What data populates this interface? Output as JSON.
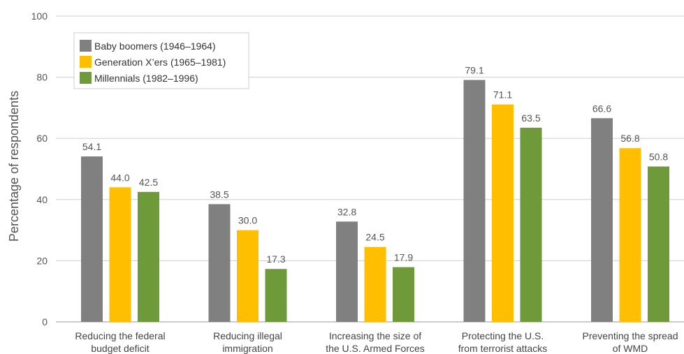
{
  "chart_data": {
    "type": "bar",
    "ylabel": "Percentage of respondents",
    "xlabel": "",
    "ylim": [
      0,
      100
    ],
    "yticks": [
      0,
      20,
      40,
      60,
      80,
      100
    ],
    "grid": true,
    "legend_position": "top-left",
    "categories": [
      [
        "Reducing the federal",
        "budget deficit"
      ],
      [
        "Reducing illegal",
        "immigration"
      ],
      [
        "Increasing the size of",
        "the U.S. Armed Forces"
      ],
      [
        "Protecting the U.S.",
        "from terrorist attacks"
      ],
      [
        "Preventing the spread",
        "of WMD"
      ]
    ],
    "series": [
      {
        "name": "Baby boomers (1946–1964)",
        "color": "#808080",
        "values": [
          54.1,
          38.5,
          32.8,
          79.1,
          66.6
        ]
      },
      {
        "name": "Generation X’ers (1965–1981)",
        "color": "#FFBF00",
        "values": [
          44.0,
          30.0,
          24.5,
          71.1,
          56.8
        ]
      },
      {
        "name": "Millennials (1982–1996)",
        "color": "#6E9A3A",
        "values": [
          42.5,
          17.3,
          17.9,
          63.5,
          50.8
        ]
      }
    ]
  }
}
